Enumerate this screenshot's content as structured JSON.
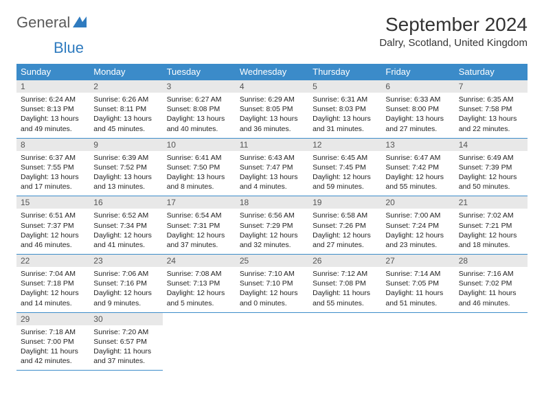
{
  "logo": {
    "part1": "General",
    "part2": "Blue"
  },
  "title": "September 2024",
  "location": "Dalry, Scotland, United Kingdom",
  "colors": {
    "header_bg": "#3b8bc9",
    "header_text": "#ffffff",
    "daynum_bg": "#e8e8e8",
    "border": "#3b8bc9",
    "text": "#222222",
    "logo_gray": "#5a5a5a",
    "logo_blue": "#2f7bbf"
  },
  "day_headers": [
    "Sunday",
    "Monday",
    "Tuesday",
    "Wednesday",
    "Thursday",
    "Friday",
    "Saturday"
  ],
  "weeks": [
    [
      {
        "num": "1",
        "sunrise": "Sunrise: 6:24 AM",
        "sunset": "Sunset: 8:13 PM",
        "daylight": "Daylight: 13 hours and 49 minutes."
      },
      {
        "num": "2",
        "sunrise": "Sunrise: 6:26 AM",
        "sunset": "Sunset: 8:11 PM",
        "daylight": "Daylight: 13 hours and 45 minutes."
      },
      {
        "num": "3",
        "sunrise": "Sunrise: 6:27 AM",
        "sunset": "Sunset: 8:08 PM",
        "daylight": "Daylight: 13 hours and 40 minutes."
      },
      {
        "num": "4",
        "sunrise": "Sunrise: 6:29 AM",
        "sunset": "Sunset: 8:05 PM",
        "daylight": "Daylight: 13 hours and 36 minutes."
      },
      {
        "num": "5",
        "sunrise": "Sunrise: 6:31 AM",
        "sunset": "Sunset: 8:03 PM",
        "daylight": "Daylight: 13 hours and 31 minutes."
      },
      {
        "num": "6",
        "sunrise": "Sunrise: 6:33 AM",
        "sunset": "Sunset: 8:00 PM",
        "daylight": "Daylight: 13 hours and 27 minutes."
      },
      {
        "num": "7",
        "sunrise": "Sunrise: 6:35 AM",
        "sunset": "Sunset: 7:58 PM",
        "daylight": "Daylight: 13 hours and 22 minutes."
      }
    ],
    [
      {
        "num": "8",
        "sunrise": "Sunrise: 6:37 AM",
        "sunset": "Sunset: 7:55 PM",
        "daylight": "Daylight: 13 hours and 17 minutes."
      },
      {
        "num": "9",
        "sunrise": "Sunrise: 6:39 AM",
        "sunset": "Sunset: 7:52 PM",
        "daylight": "Daylight: 13 hours and 13 minutes."
      },
      {
        "num": "10",
        "sunrise": "Sunrise: 6:41 AM",
        "sunset": "Sunset: 7:50 PM",
        "daylight": "Daylight: 13 hours and 8 minutes."
      },
      {
        "num": "11",
        "sunrise": "Sunrise: 6:43 AM",
        "sunset": "Sunset: 7:47 PM",
        "daylight": "Daylight: 13 hours and 4 minutes."
      },
      {
        "num": "12",
        "sunrise": "Sunrise: 6:45 AM",
        "sunset": "Sunset: 7:45 PM",
        "daylight": "Daylight: 12 hours and 59 minutes."
      },
      {
        "num": "13",
        "sunrise": "Sunrise: 6:47 AM",
        "sunset": "Sunset: 7:42 PM",
        "daylight": "Daylight: 12 hours and 55 minutes."
      },
      {
        "num": "14",
        "sunrise": "Sunrise: 6:49 AM",
        "sunset": "Sunset: 7:39 PM",
        "daylight": "Daylight: 12 hours and 50 minutes."
      }
    ],
    [
      {
        "num": "15",
        "sunrise": "Sunrise: 6:51 AM",
        "sunset": "Sunset: 7:37 PM",
        "daylight": "Daylight: 12 hours and 46 minutes."
      },
      {
        "num": "16",
        "sunrise": "Sunrise: 6:52 AM",
        "sunset": "Sunset: 7:34 PM",
        "daylight": "Daylight: 12 hours and 41 minutes."
      },
      {
        "num": "17",
        "sunrise": "Sunrise: 6:54 AM",
        "sunset": "Sunset: 7:31 PM",
        "daylight": "Daylight: 12 hours and 37 minutes."
      },
      {
        "num": "18",
        "sunrise": "Sunrise: 6:56 AM",
        "sunset": "Sunset: 7:29 PM",
        "daylight": "Daylight: 12 hours and 32 minutes."
      },
      {
        "num": "19",
        "sunrise": "Sunrise: 6:58 AM",
        "sunset": "Sunset: 7:26 PM",
        "daylight": "Daylight: 12 hours and 27 minutes."
      },
      {
        "num": "20",
        "sunrise": "Sunrise: 7:00 AM",
        "sunset": "Sunset: 7:24 PM",
        "daylight": "Daylight: 12 hours and 23 minutes."
      },
      {
        "num": "21",
        "sunrise": "Sunrise: 7:02 AM",
        "sunset": "Sunset: 7:21 PM",
        "daylight": "Daylight: 12 hours and 18 minutes."
      }
    ],
    [
      {
        "num": "22",
        "sunrise": "Sunrise: 7:04 AM",
        "sunset": "Sunset: 7:18 PM",
        "daylight": "Daylight: 12 hours and 14 minutes."
      },
      {
        "num": "23",
        "sunrise": "Sunrise: 7:06 AM",
        "sunset": "Sunset: 7:16 PM",
        "daylight": "Daylight: 12 hours and 9 minutes."
      },
      {
        "num": "24",
        "sunrise": "Sunrise: 7:08 AM",
        "sunset": "Sunset: 7:13 PM",
        "daylight": "Daylight: 12 hours and 5 minutes."
      },
      {
        "num": "25",
        "sunrise": "Sunrise: 7:10 AM",
        "sunset": "Sunset: 7:10 PM",
        "daylight": "Daylight: 12 hours and 0 minutes."
      },
      {
        "num": "26",
        "sunrise": "Sunrise: 7:12 AM",
        "sunset": "Sunset: 7:08 PM",
        "daylight": "Daylight: 11 hours and 55 minutes."
      },
      {
        "num": "27",
        "sunrise": "Sunrise: 7:14 AM",
        "sunset": "Sunset: 7:05 PM",
        "daylight": "Daylight: 11 hours and 51 minutes."
      },
      {
        "num": "28",
        "sunrise": "Sunrise: 7:16 AM",
        "sunset": "Sunset: 7:02 PM",
        "daylight": "Daylight: 11 hours and 46 minutes."
      }
    ],
    [
      {
        "num": "29",
        "sunrise": "Sunrise: 7:18 AM",
        "sunset": "Sunset: 7:00 PM",
        "daylight": "Daylight: 11 hours and 42 minutes."
      },
      {
        "num": "30",
        "sunrise": "Sunrise: 7:20 AM",
        "sunset": "Sunset: 6:57 PM",
        "daylight": "Daylight: 11 hours and 37 minutes."
      },
      null,
      null,
      null,
      null,
      null
    ]
  ]
}
